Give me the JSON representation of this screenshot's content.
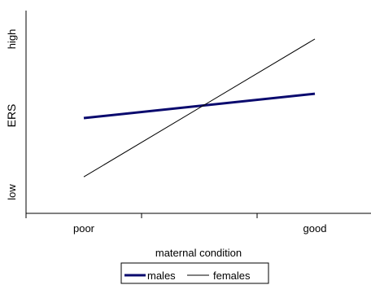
{
  "chart_data": {
    "type": "line",
    "title": "",
    "xlabel": "maternal condition",
    "ylabel": "ERS",
    "categories": [
      "poor",
      "good"
    ],
    "y_tick_labels": [
      "low",
      "high"
    ],
    "ylim": [
      0,
      10
    ],
    "grid": false,
    "legend_position": "bottom",
    "series": [
      {
        "name": "males",
        "values": [
          4.7,
          5.9
        ],
        "color": "#0a0a6e"
      },
      {
        "name": "females",
        "values": [
          1.8,
          8.6
        ],
        "color": "#000000"
      }
    ]
  }
}
